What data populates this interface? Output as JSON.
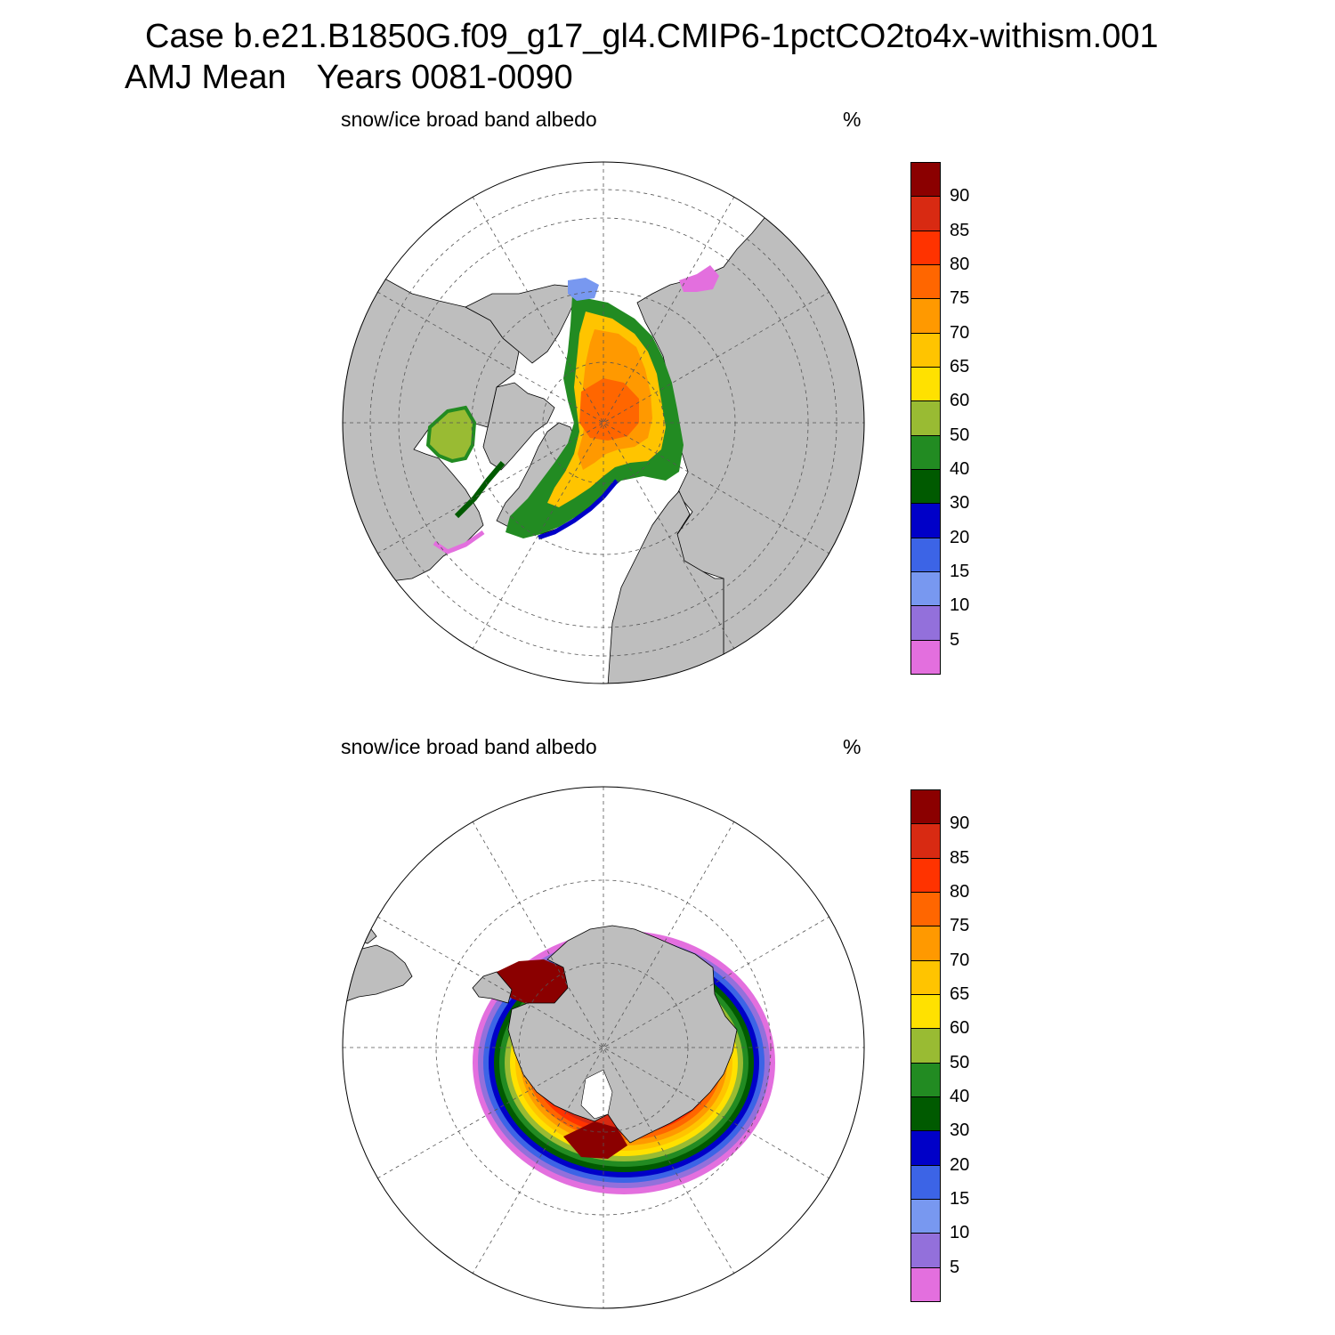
{
  "title_line1": "Case b.e21.B1850G.f09_g17_gl4.CMIP6-1pctCO2to4x-withism.001",
  "title_season": "AMJ Mean",
  "title_years": "Years 0081-0090",
  "colors": {
    "land": "#bebebe",
    "ocean": "#ffffff",
    "boundary": "#000000"
  },
  "colorbar": {
    "levels": [
      "90",
      "85",
      "80",
      "75",
      "70",
      "65",
      "60",
      "50",
      "40",
      "30",
      "20",
      "15",
      "10",
      "5"
    ],
    "colors": [
      "#8b0000",
      "#d82a12",
      "#ff3300",
      "#ff6600",
      "#ff9900",
      "#ffc400",
      "#ffe100",
      "#99bb33",
      "#228b22",
      "#005a00",
      "#0000c8",
      "#3c64e6",
      "#7898f0",
      "#9370db",
      "#e36fde"
    ]
  },
  "panels": [
    {
      "label": "snow/ice broad band albedo",
      "unit": "%",
      "hemisphere": "north",
      "projection": "polar stereographic"
    },
    {
      "label": "snow/ice broad band albedo",
      "unit": "%",
      "hemisphere": "south",
      "projection": "polar stereographic"
    }
  ]
}
